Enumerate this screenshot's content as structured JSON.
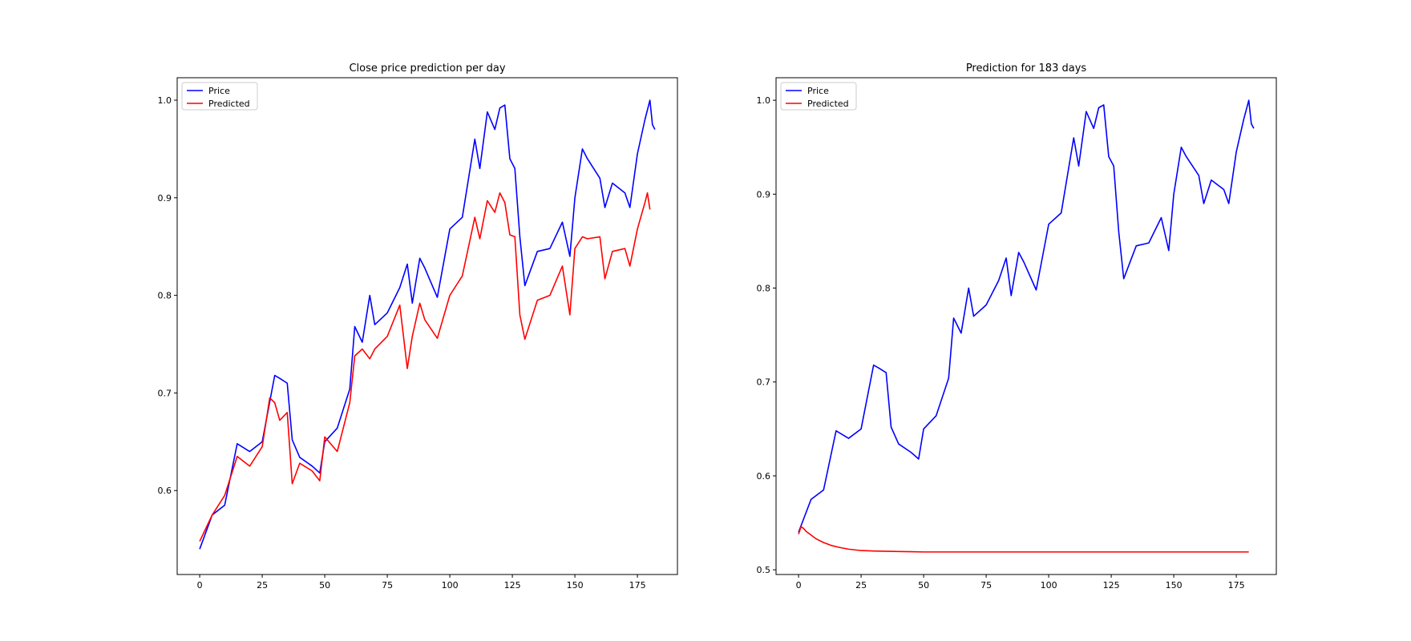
{
  "chart_data": [
    {
      "type": "line",
      "title": "Close price prediction per day",
      "xlabel": "",
      "ylabel": "",
      "xlim": [
        -9,
        191
      ],
      "ylim": [
        0.514,
        1.023
      ],
      "xticks": [
        0,
        25,
        50,
        75,
        100,
        125,
        150,
        175
      ],
      "yticks": [
        0.6,
        0.7,
        0.8,
        0.9,
        1.0
      ],
      "grid": false,
      "legend": "top-left",
      "series": [
        {
          "name": "Price",
          "color": "#0000ff",
          "x": [
            0,
            5,
            10,
            15,
            20,
            25,
            30,
            32,
            35,
            37,
            40,
            45,
            48,
            50,
            55,
            60,
            62,
            65,
            68,
            70,
            75,
            80,
            83,
            85,
            88,
            90,
            95,
            100,
            105,
            110,
            112,
            115,
            118,
            120,
            122,
            124,
            126,
            128,
            130,
            135,
            140,
            145,
            148,
            150,
            153,
            155,
            160,
            162,
            165,
            170,
            172,
            175,
            178,
            180,
            181,
            182
          ],
          "y": [
            0.54,
            0.575,
            0.585,
            0.648,
            0.64,
            0.65,
            0.718,
            0.715,
            0.71,
            0.652,
            0.634,
            0.625,
            0.618,
            0.65,
            0.664,
            0.704,
            0.768,
            0.752,
            0.8,
            0.77,
            0.782,
            0.808,
            0.832,
            0.792,
            0.838,
            0.828,
            0.798,
            0.868,
            0.88,
            0.96,
            0.93,
            0.988,
            0.97,
            0.992,
            0.995,
            0.94,
            0.93,
            0.86,
            0.81,
            0.845,
            0.848,
            0.875,
            0.84,
            0.9,
            0.95,
            0.94,
            0.92,
            0.89,
            0.915,
            0.905,
            0.89,
            0.945,
            0.98,
            1.0,
            0.975,
            0.97
          ]
        },
        {
          "name": "Predicted",
          "color": "#ff0000",
          "x": [
            0,
            5,
            10,
            15,
            20,
            25,
            28,
            30,
            32,
            35,
            37,
            40,
            45,
            48,
            50,
            55,
            60,
            62,
            65,
            68,
            70,
            75,
            80,
            83,
            85,
            88,
            90,
            95,
            100,
            105,
            110,
            112,
            115,
            118,
            120,
            122,
            124,
            126,
            128,
            130,
            135,
            140,
            145,
            148,
            150,
            153,
            155,
            160,
            162,
            165,
            170,
            172,
            175,
            178,
            179,
            180
          ],
          "y": [
            0.548,
            0.575,
            0.595,
            0.635,
            0.625,
            0.645,
            0.695,
            0.69,
            0.672,
            0.68,
            0.607,
            0.628,
            0.62,
            0.61,
            0.655,
            0.64,
            0.69,
            0.738,
            0.745,
            0.735,
            0.745,
            0.758,
            0.79,
            0.725,
            0.758,
            0.792,
            0.775,
            0.756,
            0.8,
            0.82,
            0.88,
            0.858,
            0.897,
            0.885,
            0.905,
            0.895,
            0.862,
            0.86,
            0.78,
            0.755,
            0.795,
            0.8,
            0.83,
            0.78,
            0.848,
            0.86,
            0.858,
            0.86,
            0.817,
            0.845,
            0.848,
            0.83,
            0.868,
            0.895,
            0.905,
            0.888
          ]
        }
      ]
    },
    {
      "type": "line",
      "title": "Prediction for 183 days",
      "xlabel": "",
      "ylabel": "",
      "xlim": [
        -9,
        191
      ],
      "ylim": [
        0.495,
        1.024
      ],
      "xticks": [
        0,
        25,
        50,
        75,
        100,
        125,
        150,
        175
      ],
      "yticks": [
        0.5,
        0.6,
        0.7,
        0.8,
        0.9,
        1.0
      ],
      "grid": false,
      "legend": "top-left",
      "series": [
        {
          "name": "Price",
          "color": "#0000ff",
          "x": [
            0,
            5,
            10,
            15,
            20,
            25,
            30,
            32,
            35,
            37,
            40,
            45,
            48,
            50,
            55,
            60,
            62,
            65,
            68,
            70,
            75,
            80,
            83,
            85,
            88,
            90,
            95,
            100,
            105,
            110,
            112,
            115,
            118,
            120,
            122,
            124,
            126,
            128,
            130,
            135,
            140,
            145,
            148,
            150,
            153,
            155,
            160,
            162,
            165,
            170,
            172,
            175,
            178,
            180,
            181,
            182
          ],
          "y": [
            0.54,
            0.575,
            0.585,
            0.648,
            0.64,
            0.65,
            0.718,
            0.715,
            0.71,
            0.652,
            0.634,
            0.625,
            0.618,
            0.65,
            0.664,
            0.704,
            0.768,
            0.752,
            0.8,
            0.77,
            0.782,
            0.808,
            0.832,
            0.792,
            0.838,
            0.828,
            0.798,
            0.868,
            0.88,
            0.96,
            0.93,
            0.988,
            0.97,
            0.992,
            0.995,
            0.94,
            0.93,
            0.86,
            0.81,
            0.845,
            0.848,
            0.875,
            0.84,
            0.9,
            0.95,
            0.94,
            0.92,
            0.89,
            0.915,
            0.905,
            0.89,
            0.945,
            0.98,
            1.0,
            0.975,
            0.97
          ]
        },
        {
          "name": "Predicted",
          "color": "#ff0000",
          "x": [
            0,
            1,
            2,
            3,
            5,
            7,
            10,
            13,
            16,
            20,
            25,
            30,
            40,
            50,
            60,
            80,
            100,
            120,
            140,
            160,
            180
          ],
          "y": [
            0.538,
            0.546,
            0.544,
            0.541,
            0.537,
            0.533,
            0.529,
            0.526,
            0.524,
            0.522,
            0.5205,
            0.52,
            0.5195,
            0.519,
            0.519,
            0.519,
            0.519,
            0.519,
            0.519,
            0.519,
            0.519
          ]
        }
      ]
    }
  ]
}
